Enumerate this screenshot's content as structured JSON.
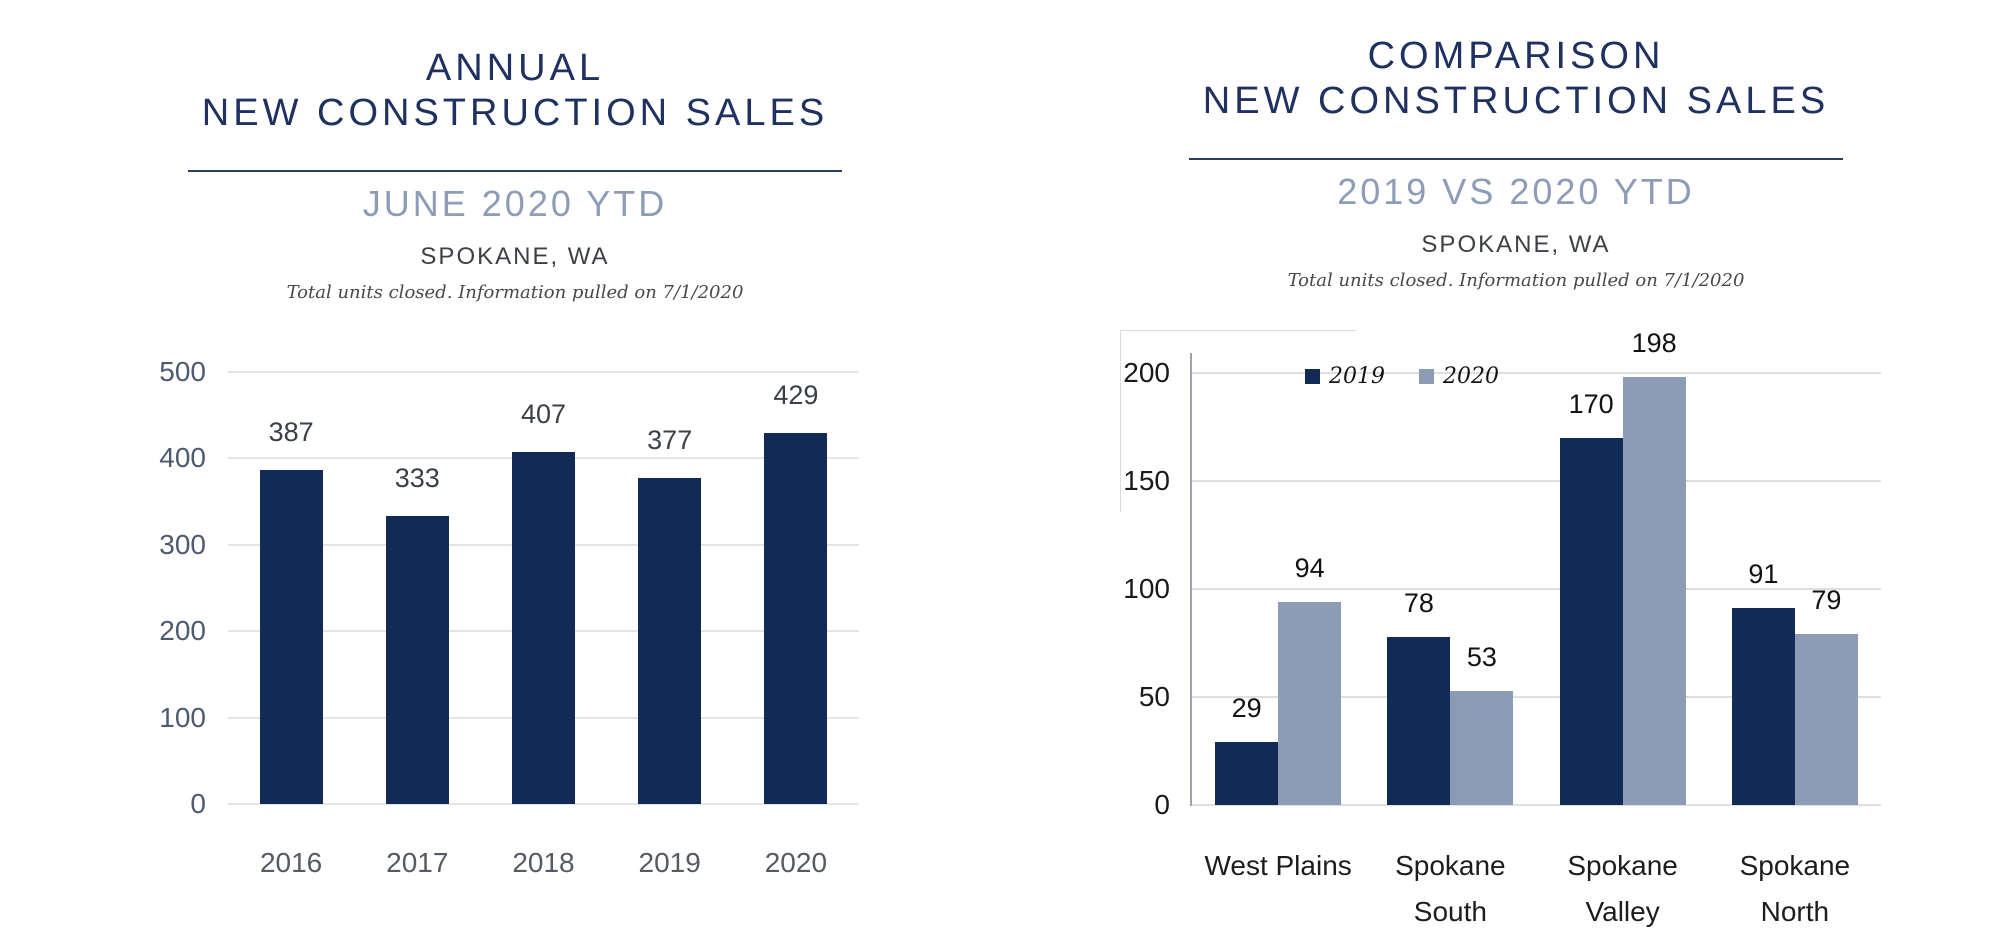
{
  "page": {
    "background": "#ffffff",
    "colors": {
      "title_navy": "#1e3160",
      "subtitle_blue_gray": "#8d9cb7",
      "bar_navy": "#122a56",
      "bar_slate": "#8d9cb5",
      "underline_navy": "#2a3c60",
      "gridline_gray": "#e5e5e8",
      "axis_gray": "#a0a3a8"
    }
  },
  "chart_data": [
    {
      "type": "bar",
      "title": "ANNUAL NEW CONSTRUCTION SALES",
      "title_lines": [
        "ANNUAL",
        "NEW CONSTRUCTION SALES"
      ],
      "subtitle": "JUNE 2020 YTD",
      "location": "SPOKANE, WA",
      "footnote": "Total units closed.  Information pulled on 7/1/2020",
      "categories": [
        "2016",
        "2017",
        "2018",
        "2019",
        "2020"
      ],
      "values": [
        387,
        333,
        407,
        377,
        429
      ],
      "bar_color": "#122a56",
      "xlabel": "",
      "ylabel": "",
      "ylim": [
        0,
        500
      ],
      "yticks": [
        0,
        100,
        200,
        300,
        400,
        500
      ],
      "grid": true,
      "legend": false
    },
    {
      "type": "bar",
      "title": "COMPARISON NEW CONSTRUCTION SALES",
      "title_lines": [
        "COMPARISON",
        "NEW CONSTRUCTION SALES"
      ],
      "subtitle": "2019 VS 2020 YTD",
      "location": "SPOKANE, WA",
      "footnote": "Total units closed.  Information pulled on 7/1/2020",
      "categories": [
        "West Plains",
        "Spokane South",
        "Spokane Valley",
        "Spokane North"
      ],
      "category_labels": [
        "West Plains",
        "Spokane\nSouth",
        "Spokane\nValley",
        "Spokane\nNorth"
      ],
      "series": [
        {
          "name": "2019",
          "color": "#122a56",
          "values": [
            29,
            78,
            170,
            91
          ]
        },
        {
          "name": "2020",
          "color": "#8d9cb5",
          "values": [
            94,
            53,
            198,
            79
          ]
        }
      ],
      "xlabel": "",
      "ylabel": "",
      "ylim": [
        0,
        200
      ],
      "yticks": [
        0,
        50,
        100,
        150,
        200
      ],
      "grid": true,
      "legend": true,
      "legend_position": "top-inside-left"
    }
  ]
}
